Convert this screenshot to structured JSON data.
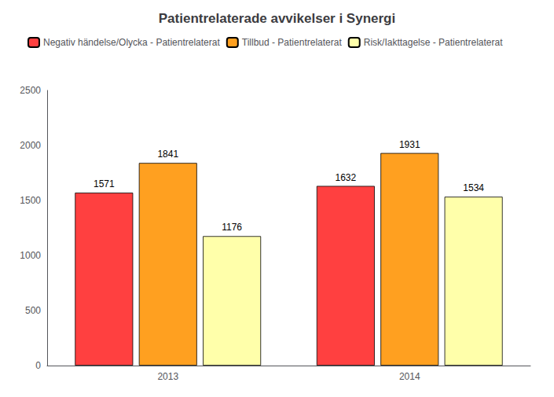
{
  "chart_data": {
    "type": "bar",
    "title": "Patientrelaterade avvikelser i Synergi",
    "categories": [
      "2013",
      "2014"
    ],
    "series": [
      {
        "name": "Negativ händelse/Olycka - Patientrelaterat",
        "color": "#FF4040",
        "values": [
          1571,
          1632
        ]
      },
      {
        "name": "Tillbud - Patientrelaterat",
        "color": "#FFA020",
        "values": [
          1841,
          1931
        ]
      },
      {
        "name": "Risk/Iakttagelse - Patientrelaterat",
        "color": "#FFFFAA",
        "values": [
          1176,
          1534
        ]
      }
    ],
    "ylim": [
      0,
      2500
    ],
    "yticks": [
      0,
      500,
      1000,
      1500,
      2000,
      2500
    ],
    "grid": false,
    "legend": "upper left",
    "data_labels": true
  }
}
